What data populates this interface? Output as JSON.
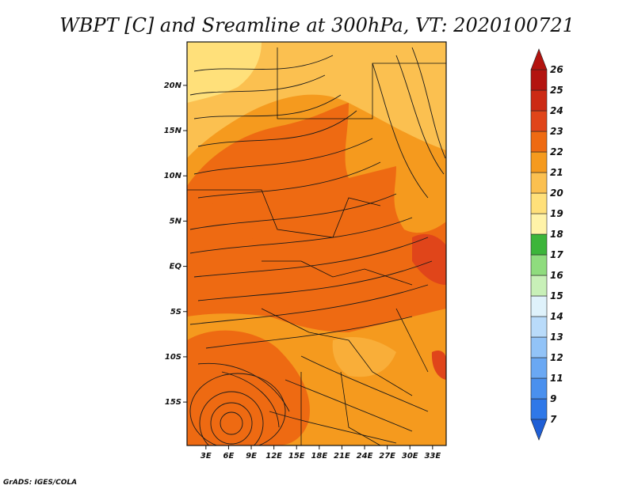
{
  "chart_data": {
    "type": "heatmap",
    "title": "WBPT [C] and Sreamline at 300hPa, VT: 2020100721",
    "variable": "WBPT [C]",
    "overlay": "Streamline",
    "level": "300hPa",
    "valid_time": "2020100721",
    "x_ticks": [
      "3E",
      "6E",
      "9E",
      "12E",
      "15E",
      "18E",
      "21E",
      "24E",
      "27E",
      "30E",
      "33E"
    ],
    "x_tick_values": [
      3,
      6,
      9,
      12,
      15,
      18,
      21,
      24,
      27,
      30,
      33
    ],
    "xlim": [
      0.5,
      34.8
    ],
    "y_ticks": [
      "20N",
      "15N",
      "10N",
      "5N",
      "EQ",
      "5S",
      "10S",
      "15S"
    ],
    "y_tick_values": [
      20,
      15,
      10,
      5,
      0,
      -5,
      -10,
      -15
    ],
    "ylim": [
      -19.8,
      24.8
    ],
    "colorbar": {
      "labels": [
        "7",
        "9",
        "11",
        "12",
        "13",
        "14",
        "15",
        "16",
        "17",
        "18",
        "19",
        "20",
        "21",
        "22",
        "23",
        "24",
        "25",
        "26"
      ],
      "colors": [
        "#1f5fd6",
        "#2f78e8",
        "#4a90ee",
        "#6aa8f3",
        "#92c3f7",
        "#b9dbfa",
        "#dff2fb",
        "#c8f0b8",
        "#8fdc7e",
        "#3cb53a",
        "#fff3a8",
        "#ffe07a",
        "#fbc050",
        "#f59a1e",
        "#ee6a12",
        "#e0451a",
        "#cc2a14",
        "#b31410"
      ]
    },
    "regions": [
      {
        "name": "north_cool",
        "value": 20.5,
        "color": "#fbc050"
      },
      {
        "name": "central_band",
        "value": 22.5,
        "color": "#ee6a12"
      },
      {
        "name": "west_warm",
        "value": 22.7,
        "color": "#ee6a12"
      },
      {
        "name": "east_moderate",
        "value": 21.5,
        "color": "#f59a1e"
      },
      {
        "name": "southwest_warm",
        "value": 22.6,
        "color": "#ee6a12"
      },
      {
        "name": "south_moderate",
        "value": 21.3,
        "color": "#f59a1e"
      },
      {
        "name": "northeast_cool",
        "value": 20.2,
        "color": "#fbc050"
      },
      {
        "name": "east_hotspot",
        "value": 23.2,
        "color": "#e0451a"
      }
    ]
  },
  "credit": "GrADS: IGES/COLA"
}
